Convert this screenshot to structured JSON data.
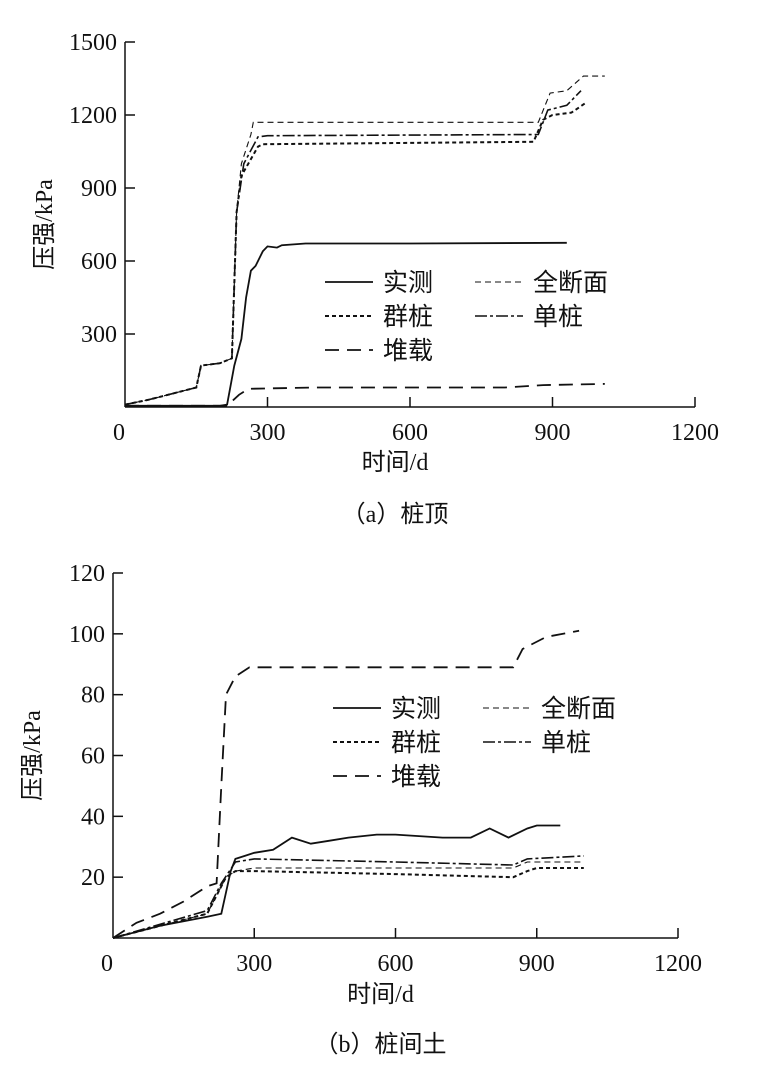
{
  "chart_data": [
    {
      "type": "line",
      "title": "（a）桩顶",
      "xlabel": "时间/d",
      "ylabel": "压强/kPa",
      "xlim": [
        0,
        1200
      ],
      "ylim": [
        0,
        1500
      ],
      "xticks": [
        0,
        300,
        600,
        900,
        1200
      ],
      "yticks": [
        300,
        600,
        900,
        1200,
        1500
      ],
      "grid": false,
      "legend_position": "center-right",
      "series": [
        {
          "name": "实测",
          "style": "solid",
          "x": [
            0,
            200,
            215,
            230,
            245,
            255,
            265,
            275,
            290,
            300,
            320,
            330,
            380,
            600,
            930
          ],
          "y": [
            5,
            5,
            10,
            170,
            280,
            450,
            560,
            580,
            640,
            660,
            655,
            665,
            672,
            672,
            675
          ]
        },
        {
          "name": "全断面",
          "style": "thin-dash",
          "x": [
            0,
            50,
            150,
            160,
            200,
            225,
            235,
            245,
            265,
            270,
            870,
            895,
            930,
            965,
            1010
          ],
          "y": [
            10,
            30,
            80,
            170,
            180,
            200,
            800,
            1000,
            1120,
            1170,
            1170,
            1290,
            1300,
            1360,
            1360
          ]
        },
        {
          "name": "群桩",
          "style": "short-dash",
          "x": [
            0,
            50,
            150,
            160,
            200,
            225,
            235,
            245,
            280,
            290,
            860,
            880,
            900,
            940,
            970
          ],
          "y": [
            10,
            30,
            80,
            170,
            180,
            200,
            800,
            950,
            1070,
            1080,
            1090,
            1180,
            1200,
            1210,
            1250
          ]
        },
        {
          "name": "单桩",
          "style": "dash-dot",
          "x": [
            0,
            50,
            150,
            160,
            200,
            225,
            235,
            250,
            280,
            300,
            870,
            890,
            930,
            960
          ],
          "y": [
            10,
            30,
            80,
            170,
            180,
            200,
            800,
            1000,
            1110,
            1115,
            1120,
            1220,
            1240,
            1300
          ]
        },
        {
          "name": "堆载",
          "style": "long-dash",
          "x": [
            0,
            215,
            240,
            260,
            400,
            800,
            880,
            1010
          ],
          "y": [
            5,
            5,
            50,
            75,
            80,
            80,
            90,
            95
          ]
        }
      ]
    },
    {
      "type": "line",
      "title": "（b）桩间土",
      "xlabel": "时间/d",
      "ylabel": "压强/kPa",
      "xlim": [
        0,
        1200
      ],
      "ylim": [
        0,
        120
      ],
      "xticks": [
        0,
        300,
        600,
        900,
        1200
      ],
      "yticks": [
        20,
        40,
        60,
        80,
        100,
        120
      ],
      "grid": false,
      "legend_position": "center-right",
      "series": [
        {
          "name": "实测",
          "style": "solid",
          "x": [
            0,
            100,
            200,
            230,
            240,
            250,
            260,
            280,
            300,
            340,
            380,
            420,
            460,
            500,
            560,
            600,
            700,
            760,
            800,
            840,
            880,
            900,
            950
          ],
          "y": [
            0,
            4,
            7,
            8,
            15,
            22,
            26,
            27,
            28,
            29,
            33,
            31,
            32,
            33,
            34,
            34,
            33,
            33,
            36,
            33,
            36,
            37,
            37
          ]
        },
        {
          "name": "全断面",
          "style": "thin-dash",
          "x": [
            0,
            200,
            240,
            260,
            300,
            850,
            880,
            1000
          ],
          "y": [
            0,
            8,
            20,
            22,
            23,
            23,
            25,
            25
          ]
        },
        {
          "name": "群桩",
          "style": "short-dash",
          "x": [
            0,
            200,
            240,
            260,
            300,
            600,
            850,
            880,
            900,
            1000
          ],
          "y": [
            0,
            8,
            20,
            22,
            22,
            21,
            20,
            22,
            23,
            23
          ]
        },
        {
          "name": "单桩",
          "style": "dash-dot",
          "x": [
            0,
            200,
            230,
            260,
            300,
            600,
            850,
            880,
            1000
          ],
          "y": [
            0,
            9,
            18,
            25,
            26,
            25,
            24,
            26,
            27
          ]
        },
        {
          "name": "堆载",
          "style": "long-dash",
          "x": [
            0,
            50,
            100,
            150,
            200,
            220,
            230,
            240,
            260,
            290,
            600,
            850,
            870,
            920,
            990
          ],
          "y": [
            0,
            5,
            8,
            12,
            17,
            18,
            50,
            80,
            86,
            89,
            89,
            89,
            95,
            99,
            101
          ]
        }
      ]
    }
  ]
}
